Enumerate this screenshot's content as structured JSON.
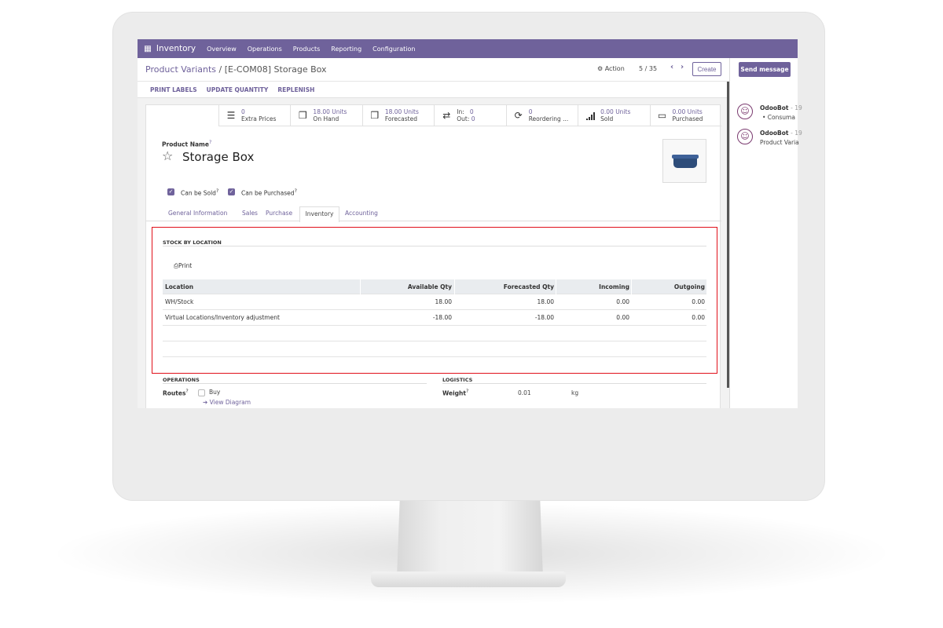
{
  "colors": {
    "brand": "#6f629b",
    "highlight": "#e0101a"
  },
  "navbar": {
    "app": "Inventory",
    "menu": [
      "Overview",
      "Operations",
      "Products",
      "Reporting",
      "Configuration"
    ]
  },
  "breadcrumb": {
    "parent": "Product Variants",
    "current": "[E-COM08] Storage Box"
  },
  "control": {
    "action": "Action",
    "pager": "5 / 35",
    "create": "Create"
  },
  "buttons": [
    "PRINT LABELS",
    "UPDATE QUANTITY",
    "REPLENISH"
  ],
  "stats": [
    {
      "icon": "list-icon",
      "value": "0",
      "label": "Extra Prices"
    },
    {
      "icon": "cubes-icon",
      "value": "18.00 Units",
      "label": "On Hand"
    },
    {
      "icon": "cubes-icon",
      "value": "18.00 Units",
      "label": "Forecasted"
    },
    {
      "icon": "exchange-icon",
      "in_label": "In:",
      "in": "0",
      "out_label": "Out:",
      "out": "0"
    },
    {
      "icon": "refresh-icon",
      "value": "0",
      "label": "Reordering ..."
    },
    {
      "icon": "signal-icon",
      "value": "0.00 Units",
      "label": "Sold"
    },
    {
      "icon": "credit-card-icon",
      "value": "0.00 Units",
      "label": "Purchased"
    }
  ],
  "product": {
    "name_label": "Product Name",
    "name": "Storage Box",
    "can_be_sold": "Can be Sold",
    "can_be_purchased": "Can be Purchased",
    "help": "?"
  },
  "tabs": [
    "General Information",
    "Sales",
    "Purchase",
    "Inventory",
    "Accounting"
  ],
  "stock": {
    "title": "STOCK BY LOCATION",
    "print": "Print",
    "columns": [
      "Location",
      "Available Qty",
      "Forecasted Qty",
      "Incoming",
      "Outgoing"
    ],
    "rows": [
      [
        "WH/Stock",
        "18.00",
        "18.00",
        "0.00",
        "0.00"
      ],
      [
        "Virtual Locations/Inventory adjustment",
        "-18.00",
        "-18.00",
        "0.00",
        "0.00"
      ]
    ]
  },
  "operations": {
    "title": "OPERATIONS",
    "routes_label": "Routes",
    "route": "Buy",
    "view_diagram": "View Diagram"
  },
  "logistics": {
    "title": "LOGISTICS",
    "weight_label": "Weight",
    "weight": "0.01",
    "unit": "kg"
  },
  "chatter": {
    "send": "Send message",
    "messages": [
      {
        "author": "OdooBot",
        "time": "- 19",
        "body": "• Consuma"
      },
      {
        "author": "OdooBot",
        "time": "- 19",
        "body": "Product Varia"
      }
    ]
  }
}
